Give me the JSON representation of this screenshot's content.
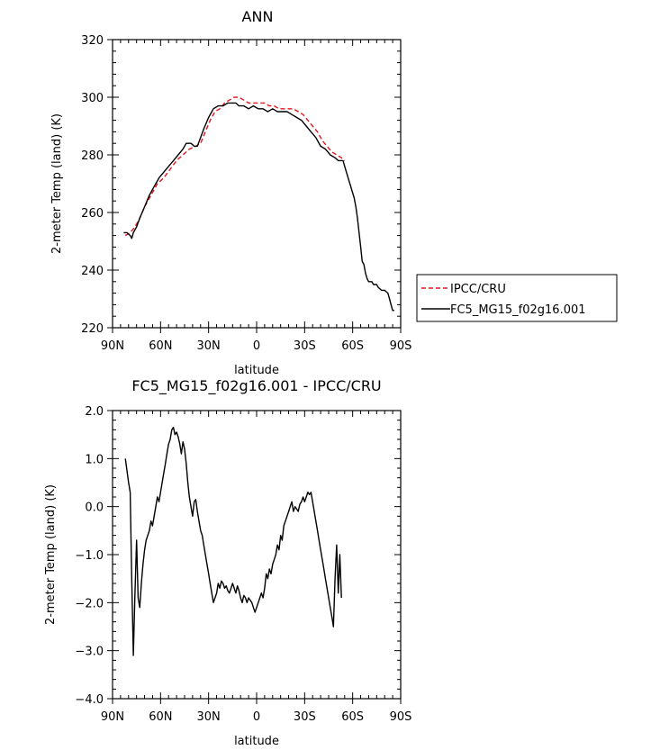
{
  "chart_data": [
    {
      "type": "line",
      "title": "ANN",
      "xlabel": "latitude",
      "ylabel": "2-meter Temp (land) (K)",
      "xlim": [
        90,
        -90
      ],
      "ylim": [
        220,
        320
      ],
      "x_ticks": [
        {
          "value": 90,
          "label": "90N"
        },
        {
          "value": 60,
          "label": "60N"
        },
        {
          "value": 30,
          "label": "30N"
        },
        {
          "value": 0,
          "label": "0"
        },
        {
          "value": -30,
          "label": "30S"
        },
        {
          "value": -60,
          "label": "60S"
        },
        {
          "value": -90,
          "label": "90S"
        }
      ],
      "y_ticks": [
        {
          "value": 220,
          "label": "220"
        },
        {
          "value": 240,
          "label": "240"
        },
        {
          "value": 260,
          "label": "260"
        },
        {
          "value": 280,
          "label": "280"
        },
        {
          "value": 300,
          "label": "300"
        },
        {
          "value": 320,
          "label": "320"
        }
      ],
      "legend_position": "outside-right",
      "series": [
        {
          "name": "IPCC/CRU",
          "color": "#e8141c",
          "dash": true,
          "points": [
            [
              82,
              252
            ],
            [
              79,
              253
            ],
            [
              76,
              255
            ],
            [
              73,
              258
            ],
            [
              70,
              262
            ],
            [
              66,
              266
            ],
            [
              62,
              270
            ],
            [
              58,
              272
            ],
            [
              54,
              275
            ],
            [
              50,
              278
            ],
            [
              46,
              280
            ],
            [
              42,
              282
            ],
            [
              38,
              283
            ],
            [
              35,
              284
            ],
            [
              32,
              288
            ],
            [
              29,
              292
            ],
            [
              26,
              295
            ],
            [
              23,
              296
            ],
            [
              20,
              298
            ],
            [
              17,
              299
            ],
            [
              14,
              300
            ],
            [
              11,
              300
            ],
            [
              8,
              299
            ],
            [
              5,
              298
            ],
            [
              2,
              298
            ],
            [
              -2,
              298
            ],
            [
              -5,
              298
            ],
            [
              -8,
              297
            ],
            [
              -11,
              297
            ],
            [
              -14,
              296
            ],
            [
              -17,
              296
            ],
            [
              -20,
              296
            ],
            [
              -23,
              296
            ],
            [
              -26,
              295
            ],
            [
              -29,
              294
            ],
            [
              -32,
              292
            ],
            [
              -35,
              290
            ],
            [
              -38,
              288
            ],
            [
              -41,
              285
            ],
            [
              -44,
              283
            ],
            [
              -47,
              281
            ],
            [
              -50,
              280
            ],
            [
              -53,
              279
            ],
            [
              -55,
              278
            ]
          ]
        },
        {
          "name": "FC5_MG15_f02g16.001",
          "color": "#000000",
          "dash": false,
          "points": [
            [
              83,
              253
            ],
            [
              81,
              253
            ],
            [
              79,
              252
            ],
            [
              78,
              251
            ],
            [
              77,
              253
            ],
            [
              75,
              255
            ],
            [
              73,
              258
            ],
            [
              70,
              262
            ],
            [
              67,
              266
            ],
            [
              64,
              269
            ],
            [
              61,
              272
            ],
            [
              58,
              274
            ],
            [
              55,
              276
            ],
            [
              52,
              278
            ],
            [
              49,
              280
            ],
            [
              46,
              282
            ],
            [
              44,
              284
            ],
            [
              41,
              284
            ],
            [
              39,
              283
            ],
            [
              37,
              283
            ],
            [
              35,
              286
            ],
            [
              33,
              289
            ],
            [
              30,
              293
            ],
            [
              27,
              296
            ],
            [
              24,
              297
            ],
            [
              21,
              297
            ],
            [
              18,
              298
            ],
            [
              15,
              298
            ],
            [
              13,
              298
            ],
            [
              11,
              297
            ],
            [
              8,
              297
            ],
            [
              5,
              296
            ],
            [
              2,
              297
            ],
            [
              -1,
              296
            ],
            [
              -4,
              296
            ],
            [
              -7,
              295
            ],
            [
              -10,
              296
            ],
            [
              -13,
              295
            ],
            [
              -16,
              295
            ],
            [
              -19,
              295
            ],
            [
              -22,
              294
            ],
            [
              -25,
              293
            ],
            [
              -28,
              292
            ],
            [
              -31,
              290
            ],
            [
              -34,
              288
            ],
            [
              -37,
              286
            ],
            [
              -40,
              283
            ],
            [
              -43,
              282
            ],
            [
              -46,
              280
            ],
            [
              -49,
              279
            ],
            [
              -51,
              278
            ],
            [
              -53,
              278
            ],
            [
              -54,
              278
            ],
            [
              -55,
              276
            ],
            [
              -61,
              265
            ],
            [
              -62,
              262
            ],
            [
              -63,
              258
            ],
            [
              -64,
              253
            ],
            [
              -65,
              248
            ],
            [
              -66,
              243
            ],
            [
              -67,
              242
            ],
            [
              -68,
              239
            ],
            [
              -69,
              237
            ],
            [
              -70,
              236
            ],
            [
              -72,
              236
            ],
            [
              -73,
              235
            ],
            [
              -75,
              235
            ],
            [
              -76,
              234
            ],
            [
              -78,
              233
            ],
            [
              -80,
              233
            ],
            [
              -82,
              232
            ],
            [
              -83,
              230
            ],
            [
              -84,
              228
            ],
            [
              -85,
              226
            ],
            [
              -86,
              226
            ]
          ]
        }
      ]
    },
    {
      "type": "line",
      "title": "FC5_MG15_f02g16.001 - IPCC/CRU",
      "xlabel": "latitude",
      "ylabel": "2-meter Temp (land) (K)",
      "xlim": [
        90,
        -90
      ],
      "ylim": [
        -4.0,
        2.0
      ],
      "x_ticks": [
        {
          "value": 90,
          "label": "90N"
        },
        {
          "value": 60,
          "label": "60N"
        },
        {
          "value": 30,
          "label": "30N"
        },
        {
          "value": 0,
          "label": "0"
        },
        {
          "value": -30,
          "label": "30S"
        },
        {
          "value": -60,
          "label": "60S"
        },
        {
          "value": -90,
          "label": "90S"
        }
      ],
      "y_ticks": [
        {
          "value": -4.0,
          "label": "−4.0"
        },
        {
          "value": -3.0,
          "label": "−3.0"
        },
        {
          "value": -2.0,
          "label": "−2.0"
        },
        {
          "value": -1.0,
          "label": "−1.0"
        },
        {
          "value": 0.0,
          "label": "0.0"
        },
        {
          "value": 1.0,
          "label": "1.0"
        },
        {
          "value": 2.0,
          "label": "2.0"
        }
      ],
      "series": [
        {
          "color": "#000000",
          "points": [
            [
              82,
              1.0
            ],
            [
              80,
              0.5
            ],
            [
              79,
              0.3
            ],
            [
              78,
              -1.5
            ],
            [
              77,
              -3.1
            ],
            [
              76,
              -1.8
            ],
            [
              75,
              -0.7
            ],
            [
              74,
              -1.9
            ],
            [
              73,
              -2.1
            ],
            [
              72,
              -1.6
            ],
            [
              71,
              -1.2
            ],
            [
              70,
              -0.9
            ],
            [
              69,
              -0.7
            ],
            [
              68,
              -0.6
            ],
            [
              67,
              -0.5
            ],
            [
              66,
              -0.3
            ],
            [
              65,
              -0.4
            ],
            [
              64,
              -0.2
            ],
            [
              63,
              0.0
            ],
            [
              62,
              0.2
            ],
            [
              61,
              0.1
            ],
            [
              60,
              0.3
            ],
            [
              59,
              0.5
            ],
            [
              58,
              0.7
            ],
            [
              57,
              0.9
            ],
            [
              56,
              1.1
            ],
            [
              55,
              1.3
            ],
            [
              54,
              1.4
            ],
            [
              53,
              1.6
            ],
            [
              52,
              1.65
            ],
            [
              51,
              1.5
            ],
            [
              50,
              1.55
            ],
            [
              49,
              1.45
            ],
            [
              48,
              1.3
            ],
            [
              47,
              1.1
            ],
            [
              46,
              1.35
            ],
            [
              45,
              1.2
            ],
            [
              44,
              0.9
            ],
            [
              43,
              0.5
            ],
            [
              42,
              0.2
            ],
            [
              41,
              0.0
            ],
            [
              40,
              -0.2
            ],
            [
              39,
              0.1
            ],
            [
              38,
              0.15
            ],
            [
              37,
              -0.1
            ],
            [
              36,
              -0.3
            ],
            [
              35,
              -0.5
            ],
            [
              34,
              -0.6
            ],
            [
              33,
              -0.8
            ],
            [
              32,
              -1.0
            ],
            [
              31,
              -1.2
            ],
            [
              30,
              -1.4
            ],
            [
              29,
              -1.6
            ],
            [
              28,
              -1.8
            ],
            [
              27,
              -2.0
            ],
            [
              26,
              -1.9
            ],
            [
              25,
              -1.8
            ],
            [
              24,
              -1.6
            ],
            [
              23,
              -1.7
            ],
            [
              22,
              -1.55
            ],
            [
              21,
              -1.6
            ],
            [
              20,
              -1.7
            ],
            [
              19,
              -1.65
            ],
            [
              18,
              -1.75
            ],
            [
              17,
              -1.8
            ],
            [
              16,
              -1.7
            ],
            [
              15,
              -1.6
            ],
            [
              14,
              -1.7
            ],
            [
              13,
              -1.8
            ],
            [
              12,
              -1.65
            ],
            [
              11,
              -1.75
            ],
            [
              10,
              -1.9
            ],
            [
              9,
              -2.0
            ],
            [
              8,
              -1.85
            ],
            [
              7,
              -1.9
            ],
            [
              6,
              -2.0
            ],
            [
              5,
              -1.9
            ],
            [
              4,
              -1.95
            ],
            [
              3,
              -2.0
            ],
            [
              2,
              -2.1
            ],
            [
              1,
              -2.2
            ],
            [
              0,
              -2.1
            ],
            [
              -1,
              -2.0
            ],
            [
              -2,
              -1.9
            ],
            [
              -3,
              -1.8
            ],
            [
              -4,
              -1.9
            ],
            [
              -5,
              -1.7
            ],
            [
              -6,
              -1.4
            ],
            [
              -7,
              -1.5
            ],
            [
              -8,
              -1.3
            ],
            [
              -9,
              -1.4
            ],
            [
              -10,
              -1.2
            ],
            [
              -11,
              -1.1
            ],
            [
              -12,
              -1.0
            ],
            [
              -13,
              -0.8
            ],
            [
              -14,
              -0.9
            ],
            [
              -15,
              -0.6
            ],
            [
              -16,
              -0.7
            ],
            [
              -17,
              -0.4
            ],
            [
              -18,
              -0.3
            ],
            [
              -19,
              -0.2
            ],
            [
              -20,
              -0.1
            ],
            [
              -21,
              0.0
            ],
            [
              -22,
              0.1
            ],
            [
              -23,
              -0.1
            ],
            [
              -24,
              0.0
            ],
            [
              -25,
              -0.05
            ],
            [
              -26,
              -0.1
            ],
            [
              -27,
              0.05
            ],
            [
              -28,
              0.1
            ],
            [
              -29,
              0.2
            ],
            [
              -30,
              0.1
            ],
            [
              -31,
              0.2
            ],
            [
              -32,
              0.3
            ],
            [
              -33,
              0.25
            ],
            [
              -34,
              0.3
            ],
            [
              -35,
              0.1
            ],
            [
              -36,
              -0.1
            ],
            [
              -37,
              -0.3
            ],
            [
              -38,
              -0.5
            ],
            [
              -39,
              -0.7
            ],
            [
              -40,
              -0.9
            ],
            [
              -41,
              -1.1
            ],
            [
              -42,
              -1.3
            ],
            [
              -43,
              -1.5
            ],
            [
              -44,
              -1.7
            ],
            [
              -45,
              -1.9
            ],
            [
              -46,
              -2.1
            ],
            [
              -47,
              -2.3
            ],
            [
              -48,
              -2.5
            ],
            [
              -49,
              -1.5
            ],
            [
              -50,
              -0.8
            ],
            [
              -51,
              -1.8
            ],
            [
              -52,
              -1.0
            ],
            [
              -53,
              -1.9
            ]
          ]
        }
      ]
    }
  ]
}
